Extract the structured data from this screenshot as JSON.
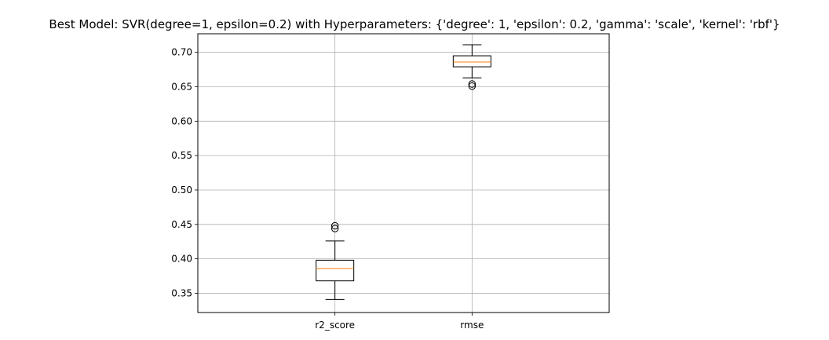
{
  "chart_data": {
    "type": "box",
    "title": "Best Model: SVR(degree=1, epsilon=0.2) with Hyperparameters: {'degree': 1, 'epsilon': 0.2, 'gamma': 'scale', 'kernel': 'rbf'}",
    "xlabel": "",
    "ylabel": "",
    "ylim": [
      0.322,
      0.727
    ],
    "y_ticks": [
      "0.35",
      "0.40",
      "0.45",
      "0.50",
      "0.55",
      "0.60",
      "0.65",
      "0.70"
    ],
    "grid": true,
    "categories": [
      "r2_score",
      "rmse"
    ],
    "boxes": [
      {
        "category": "r2_score",
        "whisker_low": 0.341,
        "q1": 0.368,
        "median": 0.386,
        "q3": 0.398,
        "whisker_high": 0.426,
        "outliers": [
          0.444,
          0.448
        ]
      },
      {
        "category": "rmse",
        "whisker_low": 0.663,
        "q1": 0.679,
        "median": 0.686,
        "q3": 0.695,
        "whisker_high": 0.711,
        "outliers": [
          0.651,
          0.654
        ]
      }
    ],
    "colors": {
      "box": "#000000",
      "median": "#ff7f0e",
      "grid": "#b0b0b0",
      "axis": "#000000"
    }
  }
}
